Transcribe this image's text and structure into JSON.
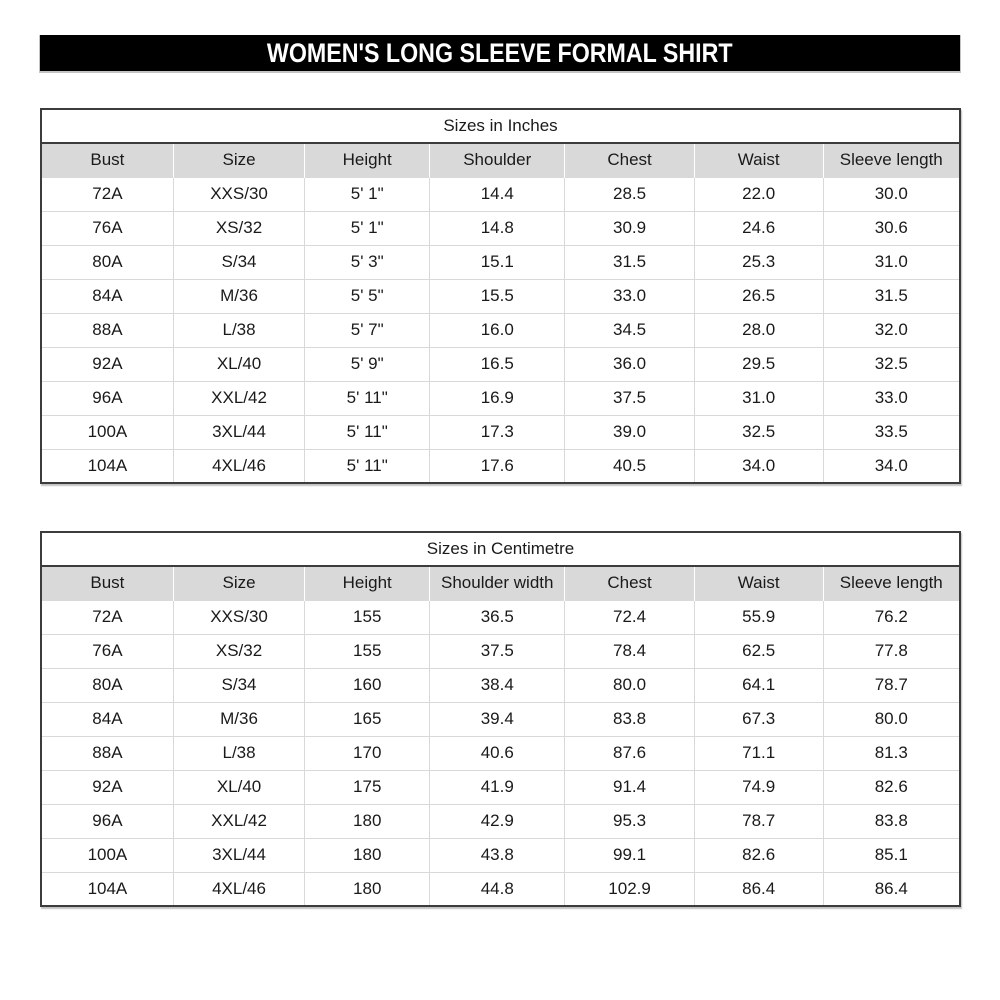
{
  "header": {
    "title": "WOMEN'S LONG SLEEVE FORMAL SHIRT"
  },
  "tables": [
    {
      "caption": "Sizes in Inches",
      "headers": [
        "Bust",
        "Size",
        "Height",
        "Shoulder",
        "Chest",
        "Waist",
        "Sleeve length"
      ],
      "rows": [
        [
          "72A",
          "XXS/30",
          "5' 1\"",
          "14.4",
          "28.5",
          "22.0",
          "30.0"
        ],
        [
          "76A",
          "XS/32",
          "5' 1\"",
          "14.8",
          "30.9",
          "24.6",
          "30.6"
        ],
        [
          "80A",
          "S/34",
          "5' 3\"",
          "15.1",
          "31.5",
          "25.3",
          "31.0"
        ],
        [
          "84A",
          "M/36",
          "5' 5\"",
          "15.5",
          "33.0",
          "26.5",
          "31.5"
        ],
        [
          "88A",
          "L/38",
          "5' 7\"",
          "16.0",
          "34.5",
          "28.0",
          "32.0"
        ],
        [
          "92A",
          "XL/40",
          "5' 9\"",
          "16.5",
          "36.0",
          "29.5",
          "32.5"
        ],
        [
          "96A",
          "XXL/42",
          "5' 11\"",
          "16.9",
          "37.5",
          "31.0",
          "33.0"
        ],
        [
          "100A",
          "3XL/44",
          "5' 11\"",
          "17.3",
          "39.0",
          "32.5",
          "33.5"
        ],
        [
          "104A",
          "4XL/46",
          "5' 11\"",
          "17.6",
          "40.5",
          "34.0",
          "34.0"
        ]
      ]
    },
    {
      "caption": "Sizes in Centimetre",
      "headers": [
        "Bust",
        "Size",
        "Height",
        "Shoulder width",
        "Chest",
        "Waist",
        "Sleeve length"
      ],
      "rows": [
        [
          "72A",
          "XXS/30",
          "155",
          "36.5",
          "72.4",
          "55.9",
          "76.2"
        ],
        [
          "76A",
          "XS/32",
          "155",
          "37.5",
          "78.4",
          "62.5",
          "77.8"
        ],
        [
          "80A",
          "S/34",
          "160",
          "38.4",
          "80.0",
          "64.1",
          "78.7"
        ],
        [
          "84A",
          "M/36",
          "165",
          "39.4",
          "83.8",
          "67.3",
          "80.0"
        ],
        [
          "88A",
          "L/38",
          "170",
          "40.6",
          "87.6",
          "71.1",
          "81.3"
        ],
        [
          "92A",
          "XL/40",
          "175",
          "41.9",
          "91.4",
          "74.9",
          "82.6"
        ],
        [
          "96A",
          "XXL/42",
          "180",
          "42.9",
          "95.3",
          "78.7",
          "83.8"
        ],
        [
          "100A",
          "3XL/44",
          "180",
          "43.8",
          "99.1",
          "82.6",
          "85.1"
        ],
        [
          "104A",
          "4XL/46",
          "180",
          "44.8",
          "102.9",
          "86.4",
          "86.4"
        ]
      ]
    }
  ],
  "colors": {
    "page_bg": "#ffffff",
    "title_bar_bg": "#000000",
    "title_text": "#ffffff",
    "header_row_bg": "#d9d9d9",
    "table_border": "#3c3c3c",
    "gridline": "#d9d9d9"
  }
}
